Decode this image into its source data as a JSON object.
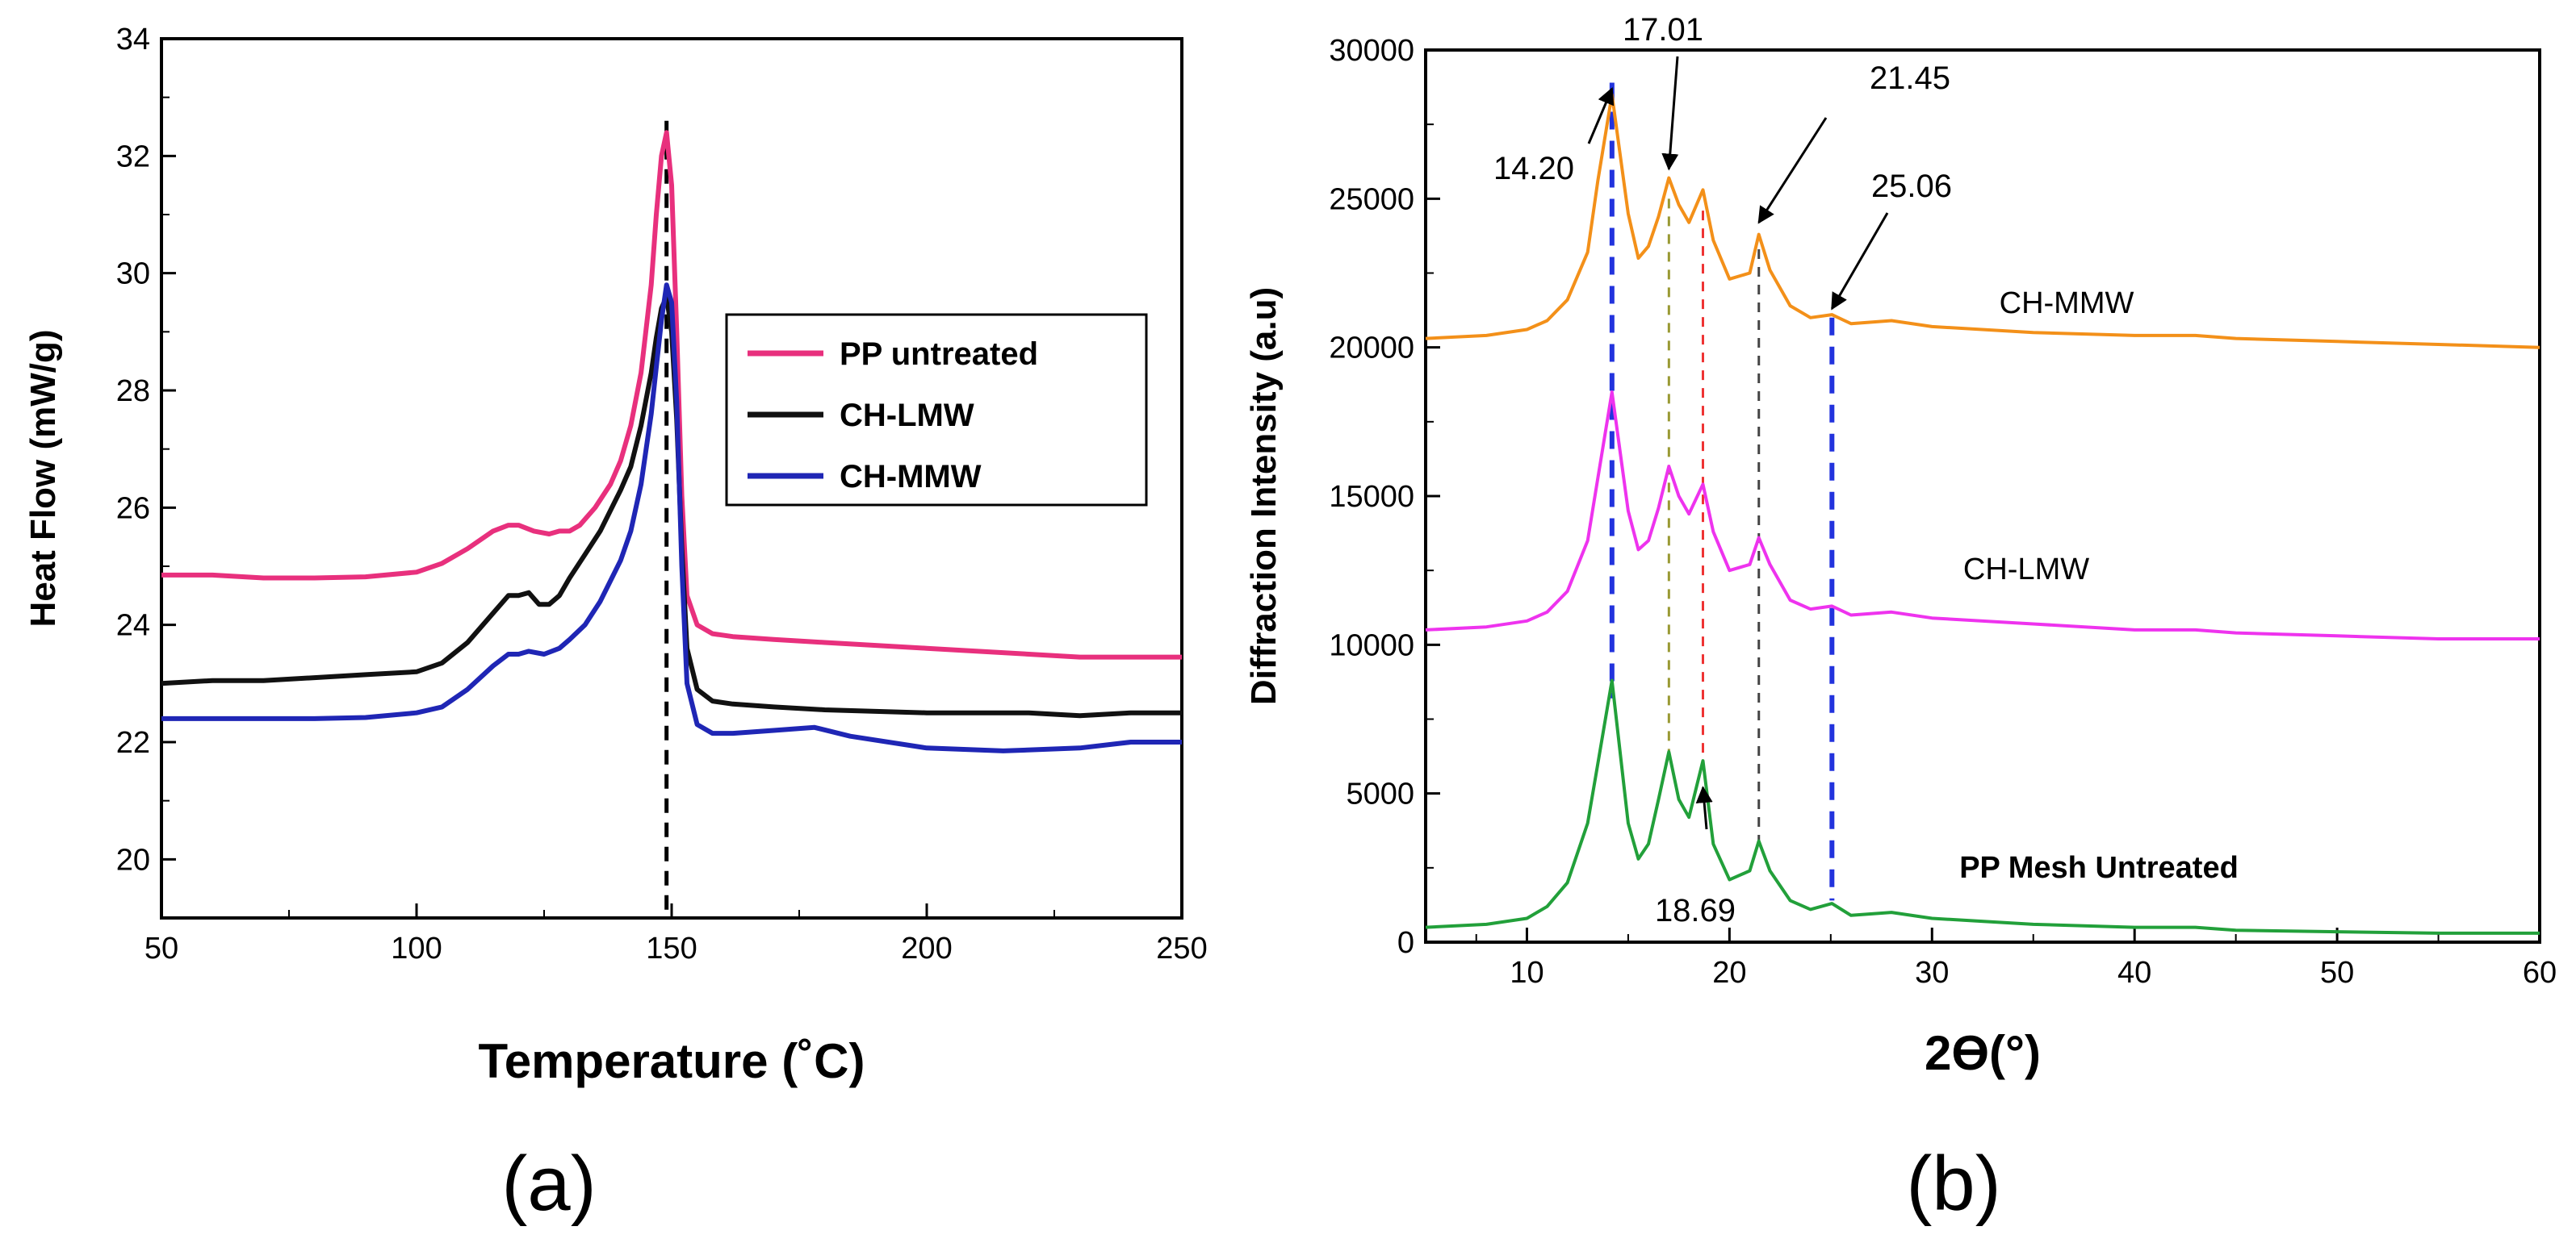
{
  "chart_data": [
    {
      "panel_label": "(a)",
      "type": "line",
      "xlabel": "Temperature (˚C)",
      "ylabel": "Heat Flow (mW/g)",
      "xlim": [
        50,
        250
      ],
      "ylim": [
        19,
        34
      ],
      "xticks": [
        50,
        100,
        150,
        200,
        250
      ],
      "yticks": [
        20,
        22,
        24,
        26,
        28,
        30,
        32,
        34
      ],
      "grid": false,
      "legend_position": "middle-right",
      "series": [
        {
          "name": "PP untreated",
          "color": "#e8307d",
          "x": [
            50,
            60,
            70,
            80,
            90,
            100,
            105,
            110,
            115,
            118,
            120,
            123,
            126,
            128,
            130,
            132,
            135,
            138,
            140,
            142,
            144,
            146,
            147,
            148,
            149,
            150,
            151,
            152,
            153,
            155,
            158,
            162,
            170,
            180,
            200,
            220,
            230,
            250
          ],
          "y": [
            24.85,
            24.85,
            24.8,
            24.8,
            24.82,
            24.9,
            25.05,
            25.3,
            25.6,
            25.7,
            25.7,
            25.6,
            25.55,
            25.6,
            25.6,
            25.7,
            26.0,
            26.4,
            26.8,
            27.4,
            28.3,
            29.8,
            31.0,
            32.0,
            32.4,
            31.5,
            29.0,
            26.2,
            24.5,
            24.0,
            23.85,
            23.8,
            23.75,
            23.7,
            23.6,
            23.5,
            23.45,
            23.45
          ]
        },
        {
          "name": "CH-LMW",
          "color": "#111111",
          "x": [
            50,
            60,
            70,
            80,
            90,
            100,
            105,
            110,
            115,
            118,
            120,
            122,
            124,
            126,
            128,
            130,
            133,
            136,
            140,
            142,
            144,
            146,
            147,
            148,
            149,
            150,
            151,
            152,
            153,
            155,
            158,
            162,
            170,
            180,
            200,
            220,
            230,
            240,
            250
          ],
          "y": [
            23.0,
            23.05,
            23.05,
            23.1,
            23.15,
            23.2,
            23.35,
            23.7,
            24.2,
            24.5,
            24.5,
            24.55,
            24.35,
            24.35,
            24.5,
            24.8,
            25.2,
            25.6,
            26.3,
            26.7,
            27.4,
            28.3,
            28.9,
            29.4,
            29.6,
            29.0,
            27.5,
            25.3,
            23.6,
            22.9,
            22.7,
            22.65,
            22.6,
            22.55,
            22.5,
            22.5,
            22.45,
            22.5,
            22.5
          ]
        },
        {
          "name": "CH-MMW",
          "color": "#1f26b5",
          "x": [
            50,
            60,
            70,
            80,
            90,
            100,
            105,
            110,
            115,
            118,
            120,
            122,
            125,
            128,
            130,
            133,
            136,
            140,
            142,
            144,
            146,
            147,
            148,
            149,
            150,
            151,
            152,
            153,
            155,
            158,
            162,
            170,
            178,
            185,
            200,
            215,
            230,
            240,
            250
          ],
          "y": [
            22.4,
            22.4,
            22.4,
            22.4,
            22.42,
            22.5,
            22.6,
            22.9,
            23.3,
            23.5,
            23.5,
            23.55,
            23.5,
            23.6,
            23.75,
            24.0,
            24.4,
            25.1,
            25.6,
            26.4,
            27.6,
            28.4,
            29.2,
            29.8,
            29.5,
            27.8,
            25.0,
            23.0,
            22.3,
            22.15,
            22.15,
            22.2,
            22.25,
            22.1,
            21.9,
            21.85,
            21.9,
            22.0,
            22.0
          ]
        }
      ],
      "reference_lines": [
        {
          "x": 149,
          "style": "dashed",
          "color": "#000000"
        }
      ]
    },
    {
      "panel_label": "(b)",
      "type": "line",
      "xlabel": "2ϴ(°)",
      "ylabel": "Diffraction Intensity (a.u)",
      "xlim": [
        5,
        60
      ],
      "ylim": [
        0,
        30000
      ],
      "xticks": [
        10,
        20,
        30,
        40,
        50,
        60
      ],
      "yticks": [
        0,
        5000,
        10000,
        15000,
        20000,
        25000,
        30000
      ],
      "grid": false,
      "series": [
        {
          "name": "CH-MMW",
          "color": "#f39019",
          "x": [
            5,
            8,
            10,
            11,
            12,
            13,
            13.5,
            14.2,
            15,
            15.5,
            16,
            16.5,
            17.01,
            17.5,
            18,
            18.69,
            19.2,
            20,
            21,
            21.45,
            22,
            23,
            24,
            25.06,
            26,
            28,
            30,
            35,
            40,
            43,
            45,
            50,
            55,
            60
          ],
          "y": [
            20300,
            20400,
            20600,
            20900,
            21600,
            23200,
            25600,
            28500,
            24500,
            23000,
            23400,
            24400,
            25700,
            24800,
            24200,
            25300,
            23600,
            22300,
            22500,
            23800,
            22600,
            21400,
            21000,
            21100,
            20800,
            20900,
            20700,
            20500,
            20400,
            20400,
            20300,
            20200,
            20100,
            20000
          ]
        },
        {
          "name": "CH-LMW",
          "color": "#ee33ee",
          "x": [
            5,
            8,
            10,
            11,
            12,
            13,
            13.5,
            14.2,
            15,
            15.5,
            16,
            16.5,
            17.01,
            17.5,
            18,
            18.69,
            19.2,
            20,
            21,
            21.45,
            22,
            23,
            24,
            25.06,
            26,
            28,
            30,
            35,
            40,
            43,
            45,
            50,
            55,
            60
          ],
          "y": [
            10500,
            10600,
            10800,
            11100,
            11800,
            13500,
            15600,
            18500,
            14500,
            13200,
            13500,
            14600,
            16000,
            15000,
            14400,
            15400,
            13800,
            12500,
            12700,
            13600,
            12700,
            11500,
            11200,
            11300,
            11000,
            11100,
            10900,
            10700,
            10500,
            10500,
            10400,
            10300,
            10200,
            10200
          ]
        },
        {
          "name": "PP Mesh Untreated",
          "color": "#22a03a",
          "x": [
            5,
            8,
            10,
            11,
            12,
            13,
            13.5,
            14.2,
            15,
            15.5,
            16,
            16.5,
            17.01,
            17.5,
            18,
            18.69,
            19.2,
            20,
            21,
            21.45,
            22,
            23,
            24,
            25.06,
            26,
            28,
            30,
            35,
            40,
            43,
            45,
            50,
            55,
            60
          ],
          "y": [
            500,
            600,
            800,
            1200,
            2000,
            4000,
            6000,
            8800,
            4000,
            2800,
            3300,
            4800,
            6400,
            4800,
            4200,
            6100,
            3300,
            2100,
            2400,
            3400,
            2400,
            1400,
            1100,
            1300,
            900,
            1000,
            800,
            600,
            500,
            500,
            400,
            350,
            300,
            300
          ]
        }
      ],
      "reference_lines": [
        {
          "x": 14.2,
          "style": "dashed",
          "color": "#2233dd",
          "label": "14.20"
        },
        {
          "x": 17.01,
          "style": "dashed",
          "color": "#999933",
          "label": "17.01"
        },
        {
          "x": 18.69,
          "style": "dashed",
          "color": "#ee3333",
          "label": "18.69"
        },
        {
          "x": 21.45,
          "style": "dashed",
          "color": "#444444",
          "label": "21.45"
        },
        {
          "x": 25.06,
          "style": "dashed",
          "color": "#2233dd",
          "label": "25.06"
        }
      ]
    }
  ]
}
